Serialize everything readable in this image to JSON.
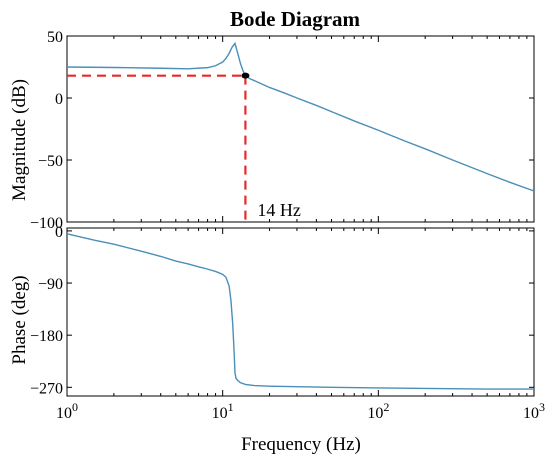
{
  "chart_data": {
    "type": "line",
    "title": "Bode Diagram",
    "xlabel": "Frequency (Hz)",
    "x_scale": "log",
    "xlim": [
      1,
      1000
    ],
    "x_tick_labels": [
      {
        "base": "10",
        "exp": "0"
      },
      {
        "base": "10",
        "exp": "1"
      },
      {
        "base": "10",
        "exp": "2"
      },
      {
        "base": "10",
        "exp": "3"
      }
    ],
    "x_tick_values": [
      1,
      10,
      100,
      1000
    ],
    "grid": false,
    "panels": [
      {
        "name": "magnitude",
        "ylabel": "Magnitude (dB)",
        "ylim": [
          -100,
          50
        ],
        "y_ticks": [
          50,
          0,
          -50,
          -100
        ],
        "y_tick_labels": [
          "50",
          "0",
          "−50",
          "−100"
        ],
        "series": [
          {
            "color": "#4a8fb8",
            "x": [
              1,
              2,
              4,
              6,
              8,
              9,
              10,
              10.5,
              11,
              11.5,
              12,
              12.5,
              13,
              13.5,
              14,
              15,
              17,
              20,
              25,
              30,
              40,
              50,
              70,
              100,
              150,
              200,
              300,
              500,
              700,
              1000
            ],
            "y": [
              25,
              24.6,
              24,
              23.5,
              24.5,
              26,
              29,
              32,
              36,
              41,
              44,
              36,
              28,
              22,
              18,
              15.5,
              12.5,
              8.5,
              4,
              0,
              -6,
              -11,
              -18.5,
              -26,
              -35,
              -41,
              -50,
              -61,
              -68,
              -75
            ]
          }
        ],
        "annotation": {
          "text": "14 Hz",
          "x": 14,
          "y": 18,
          "color": "#e52a2a",
          "marker_color": "#000000"
        }
      },
      {
        "name": "phase",
        "ylabel": "Phase (deg)",
        "ylim": [
          -285,
          5
        ],
        "y_ticks": [
          0,
          -90,
          -180,
          -270
        ],
        "y_tick_labels": [
          "0",
          "−90",
          "−180",
          "−270"
        ],
        "series": [
          {
            "color": "#4a8fb8",
            "x": [
              1,
              1.5,
              2,
              3,
              4,
              5,
              6,
              7,
              8,
              9,
              10,
              10.5,
              11,
              11.3,
              11.6,
              11.8,
              12,
              12.2,
              12.5,
              13,
              14,
              16,
              20,
              30,
              50,
              100,
              200,
              500,
              1000
            ],
            "y": [
              -5,
              -16,
              -23,
              -35,
              -44,
              -52,
              -57,
              -62,
              -66,
              -70,
              -75,
              -80,
              -95,
              -120,
              -160,
              -200,
              -245,
              -255,
              -258,
              -262,
              -265,
              -267,
              -268,
              -269,
              -270,
              -271,
              -272,
              -273,
              -273
            ]
          }
        ]
      }
    ]
  }
}
